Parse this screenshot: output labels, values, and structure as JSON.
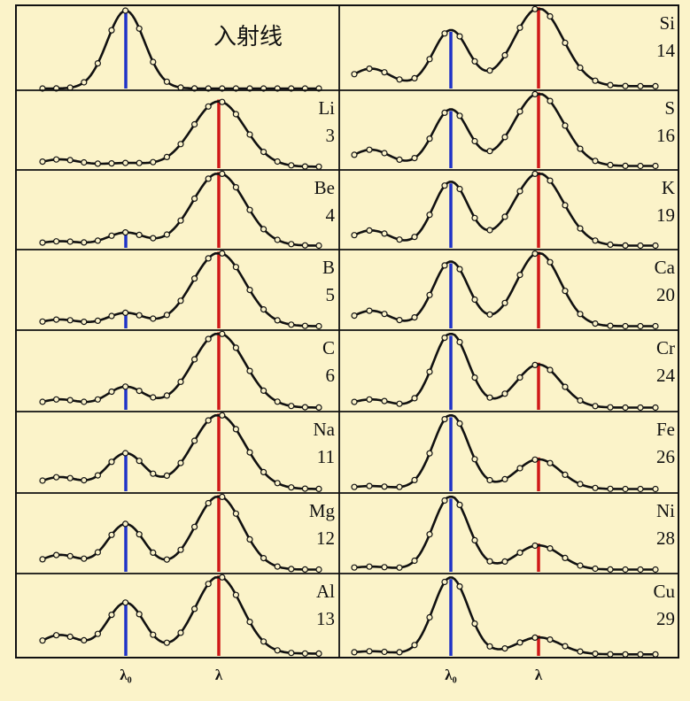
{
  "chart_data": {
    "type": "line",
    "x_marks": [
      {
        "id": "lambda0",
        "label": "λ₀",
        "color": "#1f33c8"
      },
      {
        "id": "lambda",
        "label": "λ",
        "color": "#d01818"
      }
    ],
    "colors": {
      "background": "#fbf3c9",
      "curve": "#111111",
      "lambda0_line": "#1f33c8",
      "lambda_line": "#d01818"
    },
    "panels": [
      {
        "id": "incident",
        "column": "left",
        "row": 0,
        "text": "入射线",
        "name": "",
        "z": "",
        "peaks": [
          {
            "pos": 0,
            "amp": 1.0,
            "w": 0.2
          }
        ],
        "base": 0.0,
        "bump": 0,
        "show_lambda0": true,
        "show_lambda": false
      },
      {
        "id": "Li",
        "column": "left",
        "row": 1,
        "text": "",
        "name": "Li",
        "z": "3",
        "peaks": [
          {
            "pos": 1,
            "amp": 0.9,
            "w": 0.28
          },
          {
            "pos": 0,
            "amp": 0.05,
            "w": 0.25
          }
        ],
        "base": 0.02,
        "bump": 0.2,
        "show_lambda0": false,
        "show_lambda": true
      },
      {
        "id": "Be",
        "column": "left",
        "row": 2,
        "text": "",
        "name": "Be",
        "z": "4",
        "peaks": [
          {
            "pos": 1,
            "amp": 1.0,
            "w": 0.28
          },
          {
            "pos": 0,
            "amp": 0.18,
            "w": 0.2
          }
        ],
        "base": 0.03,
        "bump": 0.12,
        "show_lambda0": true,
        "show_lambda": true
      },
      {
        "id": "B",
        "column": "left",
        "row": 3,
        "text": "",
        "name": "B",
        "z": "5",
        "peaks": [
          {
            "pos": 1,
            "amp": 1.0,
            "w": 0.28
          },
          {
            "pos": 0,
            "amp": 0.18,
            "w": 0.2
          }
        ],
        "base": 0.03,
        "bump": 0.18,
        "show_lambda0": true,
        "show_lambda": true
      },
      {
        "id": "C",
        "column": "left",
        "row": 4,
        "text": "",
        "name": "C",
        "z": "6",
        "peaks": [
          {
            "pos": 1,
            "amp": 1.0,
            "w": 0.28
          },
          {
            "pos": 0,
            "amp": 0.28,
            "w": 0.2
          }
        ],
        "base": 0.03,
        "bump": 0.22,
        "show_lambda0": true,
        "show_lambda": true
      },
      {
        "id": "Na",
        "column": "left",
        "row": 5,
        "text": "",
        "name": "Na",
        "z": "11",
        "peaks": [
          {
            "pos": 1,
            "amp": 1.0,
            "w": 0.28
          },
          {
            "pos": 0,
            "amp": 0.48,
            "w": 0.2
          }
        ],
        "base": 0.03,
        "bump": 0.32,
        "show_lambda0": true,
        "show_lambda": true
      },
      {
        "id": "Mg",
        "column": "left",
        "row": 6,
        "text": "",
        "name": "Mg",
        "z": "12",
        "peaks": [
          {
            "pos": 1,
            "amp": 1.0,
            "w": 0.25
          },
          {
            "pos": 0,
            "amp": 0.62,
            "w": 0.2
          }
        ],
        "base": 0.03,
        "bump": 0.4,
        "show_lambda0": true,
        "show_lambda": true
      },
      {
        "id": "Al",
        "column": "left",
        "row": 7,
        "text": "",
        "name": "Al",
        "z": "13",
        "peaks": [
          {
            "pos": 1,
            "amp": 1.0,
            "w": 0.25
          },
          {
            "pos": 0,
            "amp": 0.66,
            "w": 0.2
          }
        ],
        "base": 0.03,
        "bump": 0.48,
        "show_lambda0": true,
        "show_lambda": true
      },
      {
        "id": "Si",
        "column": "right",
        "row": 0,
        "text": "",
        "name": "Si",
        "z": "14",
        "peaks": [
          {
            "pos": 1,
            "amp": 1.0,
            "w": 0.28
          },
          {
            "pos": 0,
            "amp": 0.72,
            "w": 0.2
          }
        ],
        "base": 0.03,
        "bump": 0.45,
        "show_lambda0": true,
        "show_lambda": true
      },
      {
        "id": "S",
        "column": "right",
        "row": 1,
        "text": "",
        "name": "S",
        "z": "16",
        "peaks": [
          {
            "pos": 1,
            "amp": 1.0,
            "w": 0.28
          },
          {
            "pos": 0,
            "amp": 0.78,
            "w": 0.2
          }
        ],
        "base": 0.03,
        "bump": 0.45,
        "show_lambda0": true,
        "show_lambda": true
      },
      {
        "id": "K",
        "column": "right",
        "row": 2,
        "text": "",
        "name": "K",
        "z": "19",
        "peaks": [
          {
            "pos": 1,
            "amp": 1.0,
            "w": 0.28
          },
          {
            "pos": 0,
            "amp": 0.88,
            "w": 0.2
          }
        ],
        "base": 0.03,
        "bump": 0.42,
        "show_lambda0": true,
        "show_lambda": true
      },
      {
        "id": "Ca",
        "column": "right",
        "row": 3,
        "text": "",
        "name": "Ca",
        "z": "20",
        "peaks": [
          {
            "pos": 1,
            "amp": 1.0,
            "w": 0.25
          },
          {
            "pos": 0,
            "amp": 0.88,
            "w": 0.2
          }
        ],
        "base": 0.03,
        "bump": 0.42,
        "show_lambda0": true,
        "show_lambda": true
      },
      {
        "id": "Cr",
        "column": "right",
        "row": 4,
        "text": "",
        "name": "Cr",
        "z": "24",
        "peaks": [
          {
            "pos": 0,
            "amp": 1.0,
            "w": 0.2
          },
          {
            "pos": 1,
            "amp": 0.58,
            "w": 0.25
          }
        ],
        "base": 0.03,
        "bump": 0.22,
        "show_lambda0": true,
        "show_lambda": true
      },
      {
        "id": "Fe",
        "column": "right",
        "row": 5,
        "text": "",
        "name": "Fe",
        "z": "26",
        "peaks": [
          {
            "pos": 0,
            "amp": 1.0,
            "w": 0.2
          },
          {
            "pos": 1,
            "amp": 0.4,
            "w": 0.25
          }
        ],
        "base": 0.03,
        "bump": 0.08,
        "show_lambda0": true,
        "show_lambda": true
      },
      {
        "id": "Ni",
        "column": "right",
        "row": 6,
        "text": "",
        "name": "Ni",
        "z": "28",
        "peaks": [
          {
            "pos": 0,
            "amp": 1.0,
            "w": 0.2
          },
          {
            "pos": 1,
            "amp": 0.33,
            "w": 0.25
          }
        ],
        "base": 0.03,
        "bump": 0.08,
        "show_lambda0": true,
        "show_lambda": true
      },
      {
        "id": "Cu",
        "column": "right",
        "row": 7,
        "text": "",
        "name": "Cu",
        "z": "29",
        "peaks": [
          {
            "pos": 0,
            "amp": 1.0,
            "w": 0.2
          },
          {
            "pos": 1,
            "amp": 0.22,
            "w": 0.25
          }
        ],
        "base": 0.02,
        "bump": 0.08,
        "show_lambda0": true,
        "show_lambda": true
      }
    ],
    "x_axis_labels": [
      {
        "column": "left",
        "labels": [
          "λ₀",
          "λ"
        ]
      },
      {
        "column": "right",
        "labels": [
          "λ₀",
          "λ"
        ]
      }
    ]
  }
}
